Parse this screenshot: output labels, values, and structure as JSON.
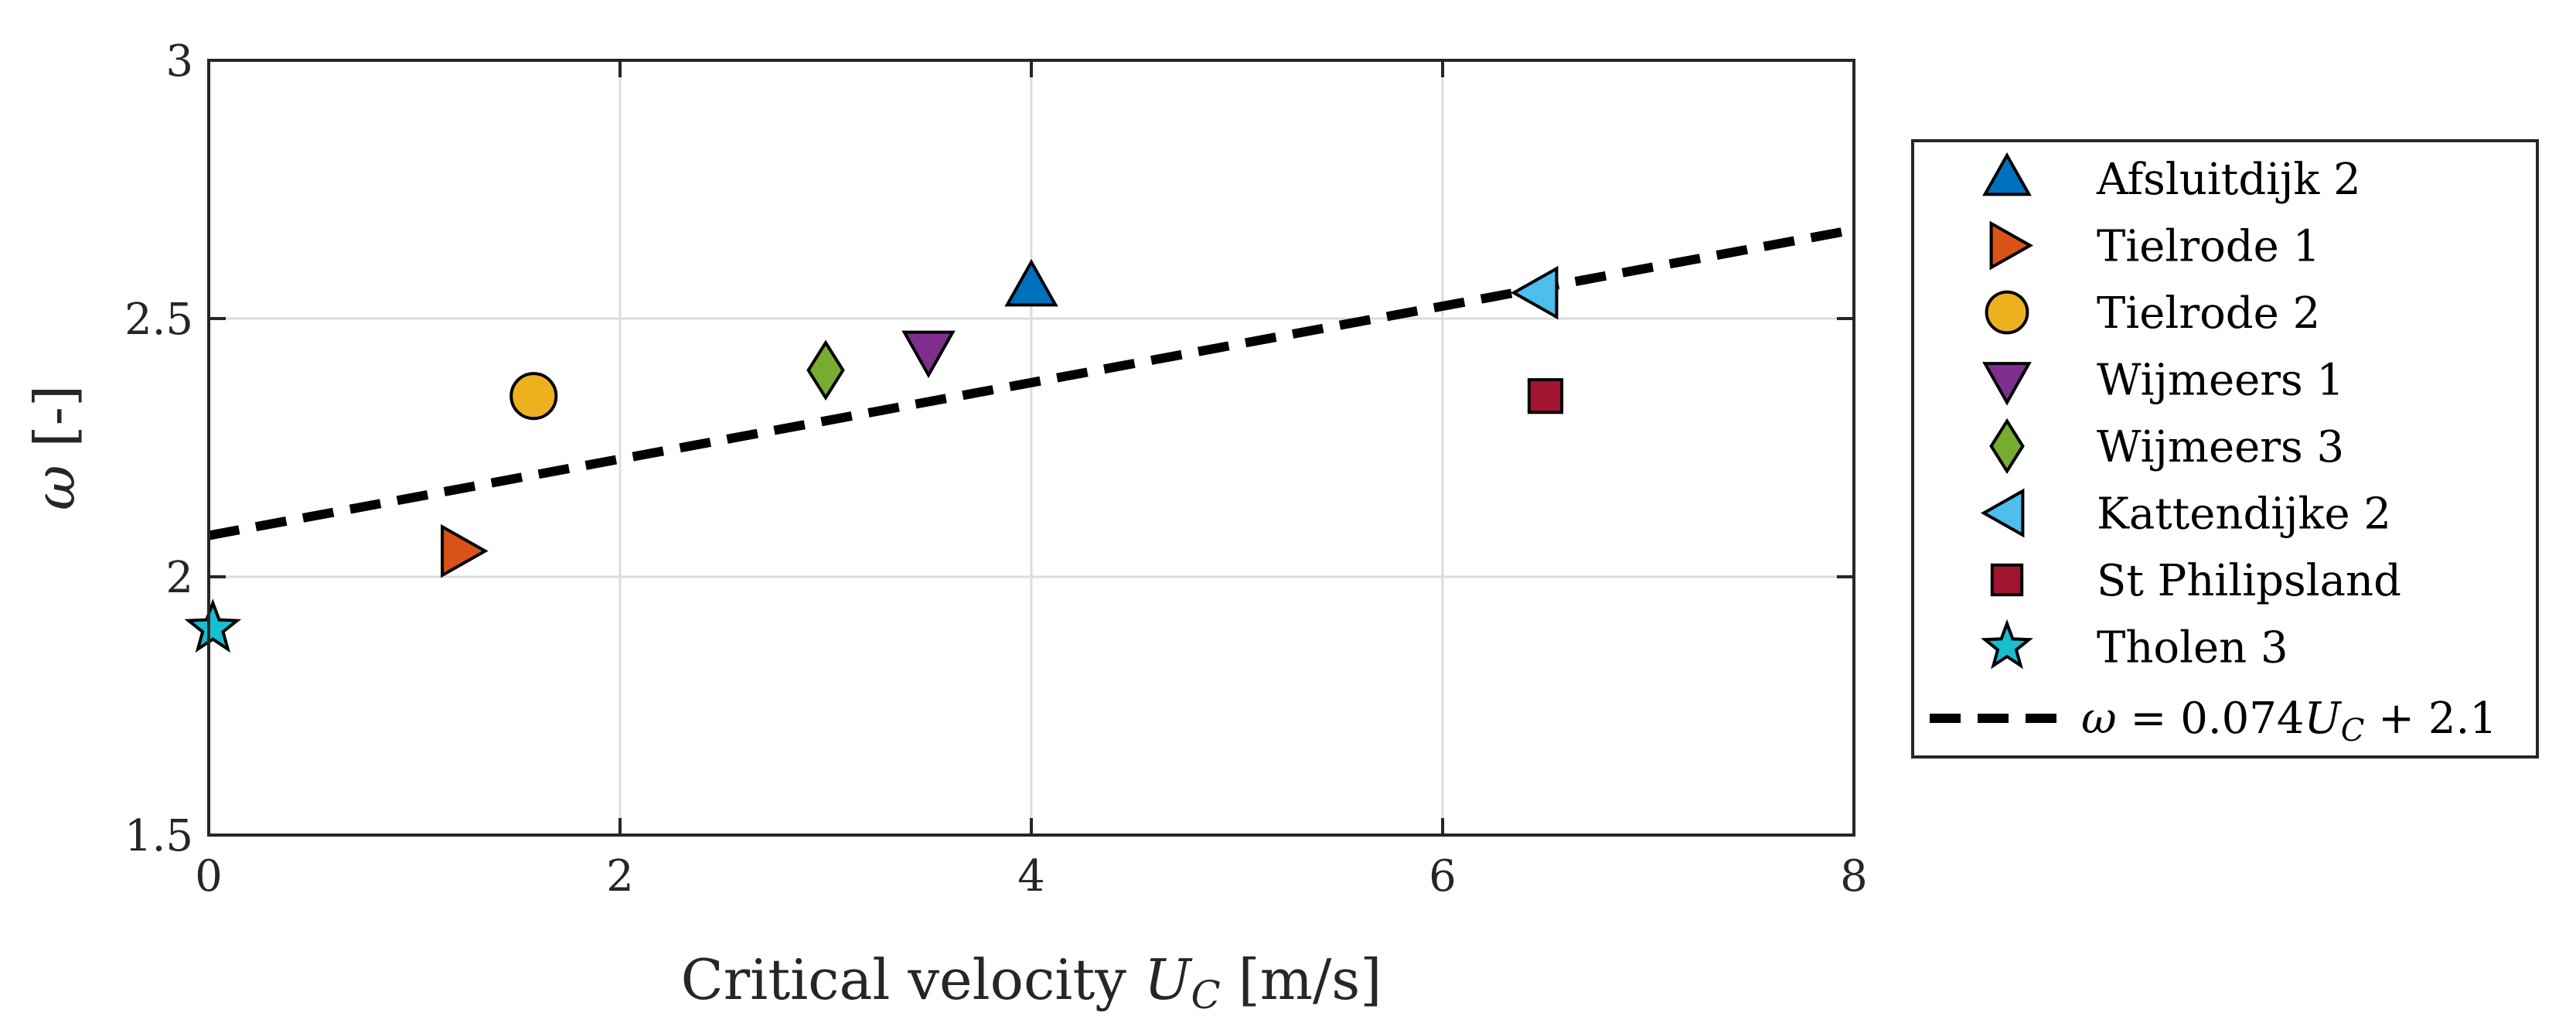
{
  "chart_data": {
    "type": "scatter",
    "title": "",
    "xlabel": "Critical velocity U_C [m/s]",
    "xlabel_parts": {
      "text": "Critical velocity ",
      "var": "U",
      "sub": "C",
      "unit": " [m/s]"
    },
    "ylabel": "ω [-]",
    "ylabel_parts": {
      "var": "ω",
      "unit": " [-]"
    },
    "xlim": [
      0,
      8
    ],
    "ylim": [
      1.5,
      3
    ],
    "xticks": [
      0,
      2,
      4,
      6,
      8
    ],
    "xtick_labels": [
      "0",
      "2",
      "4",
      "6",
      "8"
    ],
    "yticks": [
      1.5,
      2,
      2.5,
      3
    ],
    "ytick_labels": [
      "1.5",
      "2",
      "2.5",
      "3"
    ],
    "grid": true,
    "legend_position": "outside-right",
    "series": [
      {
        "name": "Afsluitdijk 2",
        "marker": "triangle-up",
        "color": "#0072BD",
        "x": 4.0,
        "y": 2.56
      },
      {
        "name": "Tielrode 1",
        "marker": "triangle-right",
        "color": "#D95319",
        "x": 1.22,
        "y": 2.05
      },
      {
        "name": "Tielrode 2",
        "marker": "circle",
        "color": "#EDB120",
        "x": 1.58,
        "y": 2.35
      },
      {
        "name": "Wijmeers 1",
        "marker": "triangle-down",
        "color": "#7E2F8E",
        "x": 3.5,
        "y": 2.44
      },
      {
        "name": "Wijmeers 3",
        "marker": "diamond",
        "color": "#77AC30",
        "x": 3.0,
        "y": 2.4
      },
      {
        "name": "Kattendijke 2",
        "marker": "triangle-left",
        "color": "#4DBEEE",
        "x": 6.47,
        "y": 2.55
      },
      {
        "name": "St Philipsland",
        "marker": "square",
        "color": "#A2142F",
        "x": 6.5,
        "y": 2.35
      },
      {
        "name": "Tholen 3",
        "marker": "star",
        "color": "#17BECF",
        "x": 0.02,
        "y": 1.9
      }
    ],
    "fit_line": {
      "name": "ω = 0.074U_C + 2.1",
      "label_parts": {
        "lhs": "ω",
        "eq": " = 0.074",
        "var": "U",
        "sub": "C",
        "rest": " + 2.1"
      },
      "slope": 0.074,
      "intercept": 2.08,
      "style": "dashed",
      "color": "#000000"
    }
  }
}
